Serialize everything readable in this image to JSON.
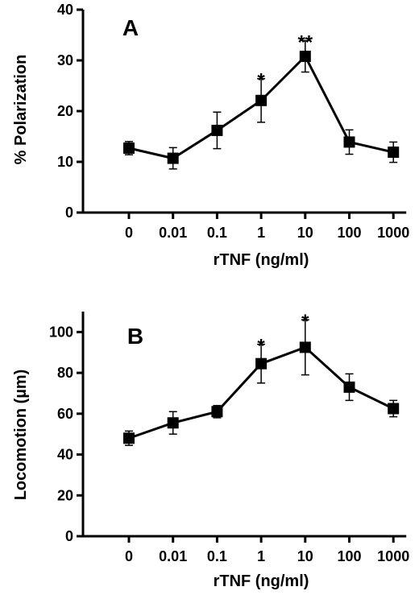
{
  "chart_data": [
    {
      "type": "line",
      "panel_label": "A",
      "categories": [
        "0",
        "0.01",
        "0.1",
        "1",
        "10",
        "100",
        "1000"
      ],
      "values": [
        12.7,
        10.7,
        16.2,
        22.1,
        30.8,
        13.9,
        11.9
      ],
      "errors": [
        1.3,
        2.1,
        3.6,
        4.3,
        3.1,
        2.4,
        2.0
      ],
      "significance": [
        "",
        "",
        "",
        "*",
        "**",
        "",
        ""
      ],
      "xlabel": "rTNF (ng/ml)",
      "ylabel": "% Polarization",
      "ylim": [
        0,
        40
      ],
      "yticks": [
        0,
        10,
        20,
        30,
        40
      ],
      "grid": false,
      "marker": "square",
      "color": "#000000"
    },
    {
      "type": "line",
      "panel_label": "B",
      "categories": [
        "0",
        "0.01",
        "0.1",
        "1",
        "10",
        "100",
        "1000"
      ],
      "values": [
        48,
        55.5,
        61,
        84.5,
        92.5,
        73,
        62.5
      ],
      "errors": [
        3.5,
        5.5,
        3,
        9.5,
        13.5,
        6.5,
        4
      ],
      "significance": [
        "",
        "",
        "",
        "*",
        "*",
        "",
        ""
      ],
      "xlabel": "rTNF (ng/ml)",
      "ylabel": "Locomotion (µm)",
      "ylim": [
        0,
        110
      ],
      "yticks": [
        0,
        20,
        40,
        60,
        80,
        100
      ],
      "grid": false,
      "marker": "square",
      "color": "#000000"
    }
  ]
}
